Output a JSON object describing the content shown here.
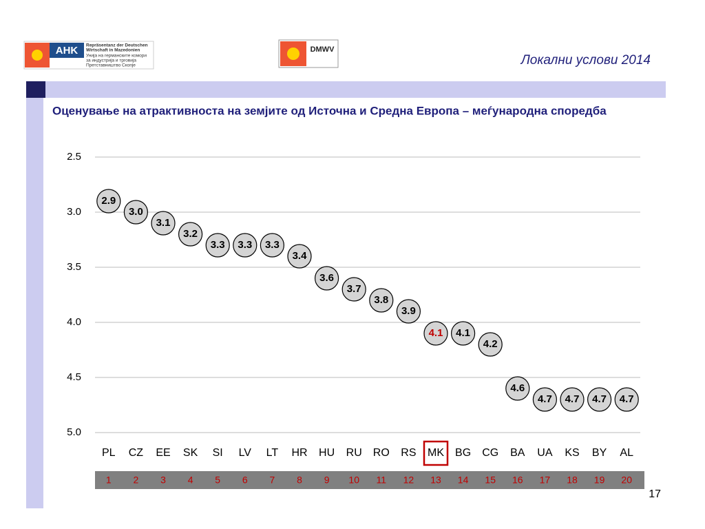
{
  "header": {
    "subtitle": "Локални услови 2014",
    "page_number": "17",
    "logos": {
      "ahk_mark": "AHK",
      "ahk_text_de": [
        "Repräsentanz der Deutschen",
        "Wirtschaft in Mazedonien"
      ],
      "ahk_text_mk": [
        "Унија на германските комори",
        "за индустрија и трговија",
        "Претставништво Скопје"
      ],
      "dmwv": "DMWV"
    }
  },
  "chart_data": {
    "type": "bubble-line",
    "title": "Оценување на атрактивноста на земјите од Источна и Средна Европа – меѓународна споредба",
    "categories": [
      "PL",
      "CZ",
      "EE",
      "SK",
      "SI",
      "LV",
      "LT",
      "HR",
      "HU",
      "RU",
      "RO",
      "RS",
      "MK",
      "BG",
      "CG",
      "BA",
      "UA",
      "KS",
      "BY",
      "AL"
    ],
    "values": [
      2.9,
      3.0,
      3.1,
      3.2,
      3.3,
      3.3,
      3.3,
      3.4,
      3.6,
      3.7,
      3.8,
      3.9,
      4.1,
      4.1,
      4.2,
      4.6,
      4.7,
      4.7,
      4.7,
      4.7
    ],
    "value_labels": [
      "2.9",
      "3.0",
      "3.1",
      "3.2",
      "3.3",
      "3.3",
      "3.3",
      "3.4",
      "3.6",
      "3.7",
      "3.8",
      "3.9",
      "4.1",
      "4.1",
      "4.2",
      "4.6",
      "4.7",
      "4.7",
      "4.7",
      "4.7"
    ],
    "ranks": [
      "1",
      "2",
      "3",
      "4",
      "5",
      "6",
      "7",
      "8",
      "9",
      "10",
      "11",
      "12",
      "13",
      "14",
      "15",
      "16",
      "17",
      "18",
      "19",
      "20"
    ],
    "highlight": "MK",
    "highlight_color": "#c00000",
    "color": "#d4d4d4",
    "ylim": [
      2.5,
      5.0
    ],
    "y_inverted": true,
    "yticks": [
      2.5,
      {
        "value": 3,
        "label": "3.0"
      },
      3.5,
      {
        "value": 4,
        "label": "4.0"
      },
      4.5,
      {
        "value": 5,
        "label": "5.0"
      }
    ],
    "grid": true
  }
}
